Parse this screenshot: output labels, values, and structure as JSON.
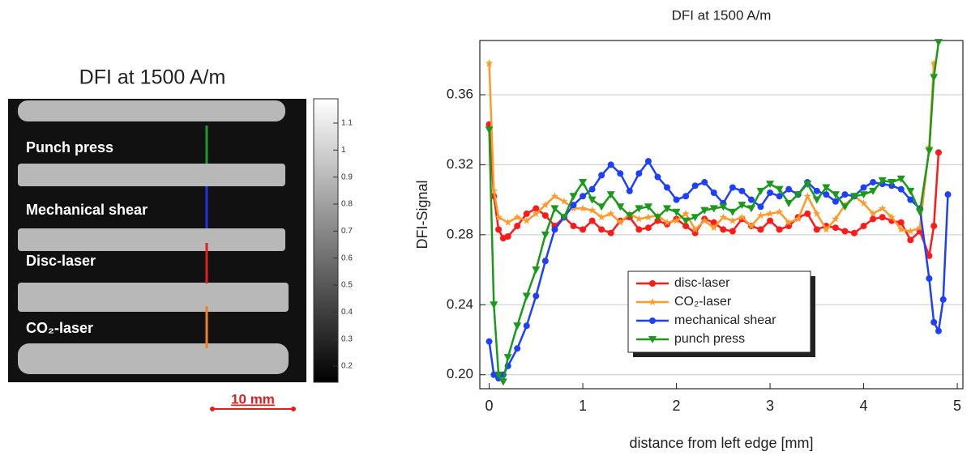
{
  "image_panel": {
    "title": "DFI at 1500 A/m",
    "labels": [
      {
        "text": "Punch press",
        "color": "#1f9a2a"
      },
      {
        "text": "Mechanical shear",
        "color": "#2233dd"
      },
      {
        "text": "Disc-laser",
        "color": "#e02020"
      },
      {
        "text": "CO₂-laser",
        "color": "#f08020"
      }
    ],
    "colorbar": {
      "lim": [
        0.14,
        1.19
      ],
      "ticks": [
        1.1,
        1,
        0.9,
        0.8,
        0.7,
        0.6,
        0.5,
        0.4,
        0.3,
        0.2
      ]
    },
    "scale_bar": "10 mm"
  },
  "chart_data": {
    "type": "line",
    "title": "DFI at 1500 A/m",
    "x_label": "distance from left edge [mm]",
    "y_label": "DFI-Signal",
    "xlim": [
      -0.1,
      5.06
    ],
    "xticks": [
      0,
      1,
      2,
      3,
      4,
      5
    ],
    "ylim": [
      0.192,
      0.391
    ],
    "yticks": [
      {
        "value": 0.2,
        "label": "0.20"
      },
      0.24,
      0.28,
      0.32,
      0.36
    ],
    "grid": true,
    "series": [
      {
        "name": "disc-laser",
        "color": "#ff1a1a",
        "marker": "circle",
        "x": [
          0,
          0.05,
          0.1,
          0.15,
          0.2,
          0.3,
          0.4,
          0.5,
          0.6,
          0.7,
          0.8,
          0.9,
          1.0,
          1.1,
          1.2,
          1.3,
          1.4,
          1.5,
          1.6,
          1.7,
          1.8,
          1.9,
          2.0,
          2.1,
          2.2,
          2.3,
          2.4,
          2.5,
          2.6,
          2.7,
          2.8,
          2.9,
          3.0,
          3.1,
          3.2,
          3.3,
          3.4,
          3.5,
          3.6,
          3.7,
          3.8,
          3.9,
          4.0,
          4.1,
          4.2,
          4.3,
          4.4,
          4.5,
          4.6,
          4.7,
          4.75,
          4.8
        ],
        "values": [
          0.343,
          0.302,
          0.283,
          0.278,
          0.279,
          0.285,
          0.292,
          0.295,
          0.291,
          0.285,
          0.29,
          0.285,
          0.283,
          0.288,
          0.283,
          0.281,
          0.288,
          0.29,
          0.283,
          0.284,
          0.288,
          0.286,
          0.289,
          0.285,
          0.281,
          0.289,
          0.287,
          0.283,
          0.282,
          0.289,
          0.285,
          0.283,
          0.288,
          0.283,
          0.285,
          0.29,
          0.292,
          0.283,
          0.285,
          0.284,
          0.282,
          0.281,
          0.285,
          0.289,
          0.29,
          0.288,
          0.287,
          0.277,
          0.282,
          0.268,
          0.285,
          0.327
        ]
      },
      {
        "name": "CO₂-laser",
        "color": "#ff9a2a",
        "marker": "star",
        "x": [
          0,
          0.05,
          0.1,
          0.2,
          0.3,
          0.4,
          0.5,
          0.6,
          0.7,
          0.8,
          0.9,
          1.0,
          1.1,
          1.2,
          1.3,
          1.4,
          1.5,
          1.6,
          1.7,
          1.8,
          1.9,
          2.0,
          2.1,
          2.2,
          2.3,
          2.4,
          2.5,
          2.6,
          2.7,
          2.8,
          2.9,
          3.0,
          3.1,
          3.2,
          3.3,
          3.4,
          3.5,
          3.6,
          3.7,
          3.8,
          3.9,
          4.0,
          4.1,
          4.2,
          4.3,
          4.4,
          4.5,
          4.6,
          4.7,
          4.75
        ],
        "values": [
          0.378,
          0.305,
          0.29,
          0.287,
          0.29,
          0.288,
          0.292,
          0.297,
          0.302,
          0.299,
          0.295,
          0.295,
          0.294,
          0.29,
          0.292,
          0.287,
          0.292,
          0.289,
          0.29,
          0.291,
          0.287,
          0.288,
          0.292,
          0.283,
          0.288,
          0.284,
          0.29,
          0.288,
          0.29,
          0.285,
          0.291,
          0.292,
          0.293,
          0.287,
          0.289,
          0.302,
          0.292,
          0.283,
          0.289,
          0.297,
          0.302,
          0.298,
          0.292,
          0.295,
          0.29,
          0.283,
          0.282,
          0.284,
          0.33,
          0.378
        ]
      },
      {
        "name": "mechanical shear",
        "color": "#1f3fff",
        "marker": "circle",
        "x": [
          0,
          0.05,
          0.1,
          0.15,
          0.2,
          0.3,
          0.4,
          0.5,
          0.6,
          0.7,
          0.8,
          0.9,
          1.0,
          1.1,
          1.2,
          1.3,
          1.4,
          1.5,
          1.6,
          1.7,
          1.8,
          1.9,
          2.0,
          2.1,
          2.2,
          2.3,
          2.4,
          2.5,
          2.6,
          2.7,
          2.8,
          2.9,
          3.0,
          3.1,
          3.2,
          3.3,
          3.4,
          3.5,
          3.6,
          3.7,
          3.8,
          3.9,
          4.0,
          4.1,
          4.2,
          4.3,
          4.4,
          4.5,
          4.6,
          4.7,
          4.75,
          4.8,
          4.85,
          4.9
        ],
        "values": [
          0.219,
          0.2,
          0.198,
          0.2,
          0.205,
          0.215,
          0.228,
          0.245,
          0.265,
          0.283,
          0.29,
          0.297,
          0.302,
          0.306,
          0.314,
          0.32,
          0.315,
          0.305,
          0.315,
          0.322,
          0.313,
          0.307,
          0.3,
          0.302,
          0.308,
          0.31,
          0.304,
          0.298,
          0.307,
          0.305,
          0.3,
          0.296,
          0.304,
          0.302,
          0.306,
          0.303,
          0.31,
          0.305,
          0.303,
          0.299,
          0.303,
          0.302,
          0.307,
          0.31,
          0.309,
          0.308,
          0.306,
          0.3,
          0.295,
          0.255,
          0.23,
          0.225,
          0.243,
          0.303
        ]
      },
      {
        "name": "punch press",
        "color": "#1a9a1a",
        "marker": "triangle-down",
        "x": [
          0,
          0.05,
          0.1,
          0.15,
          0.2,
          0.3,
          0.4,
          0.5,
          0.6,
          0.7,
          0.8,
          0.9,
          1.0,
          1.1,
          1.2,
          1.3,
          1.4,
          1.5,
          1.6,
          1.7,
          1.8,
          1.9,
          2.0,
          2.1,
          2.2,
          2.3,
          2.4,
          2.5,
          2.6,
          2.7,
          2.8,
          2.9,
          3.0,
          3.1,
          3.2,
          3.3,
          3.4,
          3.5,
          3.6,
          3.7,
          3.8,
          3.9,
          4.0,
          4.1,
          4.2,
          4.3,
          4.4,
          4.5,
          4.6,
          4.7,
          4.75,
          4.8
        ],
        "values": [
          0.34,
          0.24,
          0.2,
          0.196,
          0.21,
          0.228,
          0.245,
          0.26,
          0.28,
          0.295,
          0.29,
          0.302,
          0.31,
          0.3,
          0.296,
          0.303,
          0.296,
          0.291,
          0.295,
          0.296,
          0.29,
          0.295,
          0.293,
          0.288,
          0.29,
          0.294,
          0.295,
          0.296,
          0.293,
          0.297,
          0.295,
          0.305,
          0.309,
          0.306,
          0.298,
          0.303,
          0.309,
          0.3,
          0.307,
          0.303,
          0.296,
          0.302,
          0.303,
          0.305,
          0.311,
          0.31,
          0.312,
          0.305,
          0.293,
          0.328,
          0.37,
          0.39
        ]
      }
    ]
  }
}
